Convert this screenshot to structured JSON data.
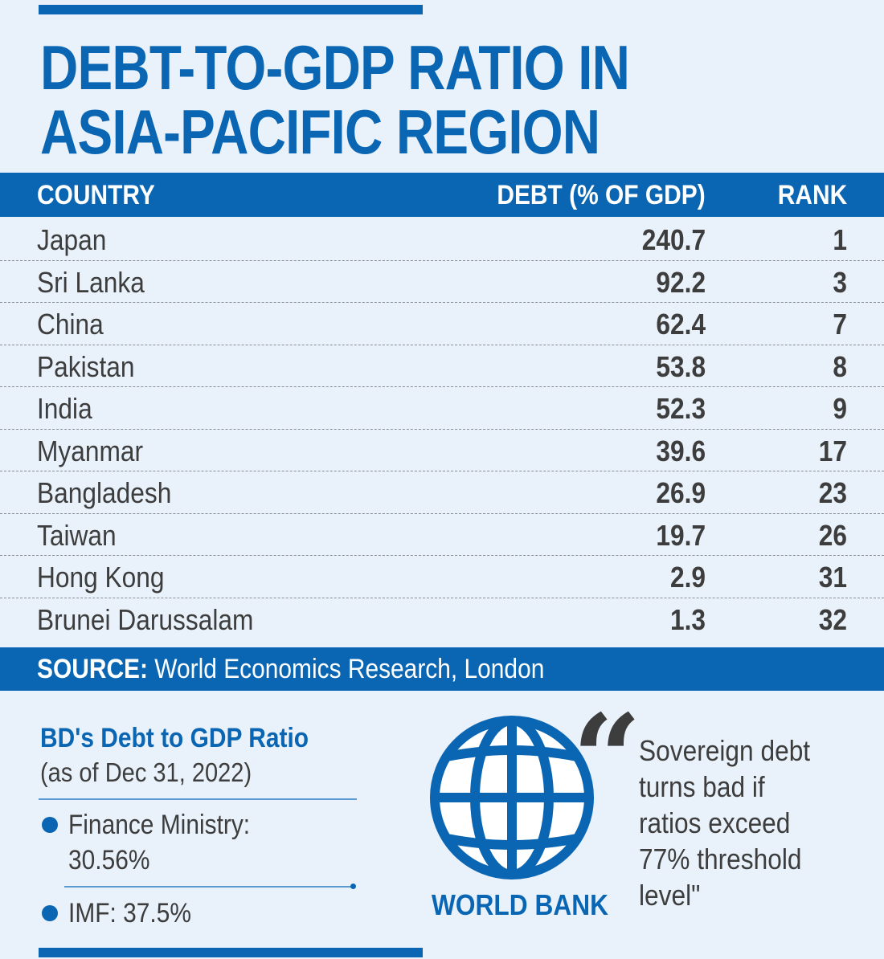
{
  "title_line1": "DEBT-TO-GDP RATIO IN",
  "title_line2": "ASIA-PACIFIC REGION",
  "colors": {
    "brand_blue": "#0a66b3",
    "panel_bg": "#e9f2fb",
    "text_dark": "#3d3d3d"
  },
  "table": {
    "headers": {
      "country": "COUNTRY",
      "debt": "DEBT (% OF GDP)",
      "rank": "RANK"
    },
    "rows": [
      {
        "country": "Japan",
        "debt": "240.7",
        "rank": "1"
      },
      {
        "country": "Sri Lanka",
        "debt": "92.2",
        "rank": "3"
      },
      {
        "country": "China",
        "debt": "62.4",
        "rank": "7"
      },
      {
        "country": "Pakistan",
        "debt": "53.8",
        "rank": "8"
      },
      {
        "country": "India",
        "debt": "52.3",
        "rank": "9"
      },
      {
        "country": "Myanmar",
        "debt": "39.6",
        "rank": "17"
      },
      {
        "country": "Bangladesh",
        "debt": "26.9",
        "rank": "23"
      },
      {
        "country": "Taiwan",
        "debt": "19.7",
        "rank": "26"
      },
      {
        "country": "Hong Kong",
        "debt": "2.9",
        "rank": "31"
      },
      {
        "country": "Brunei Darussalam",
        "debt": "1.3",
        "rank": "32"
      }
    ]
  },
  "source": {
    "label": "SOURCE:",
    "text": " World Economics Research, London"
  },
  "bd": {
    "title": "BD's Debt to GDP Ratio",
    "subtitle": "(as of Dec 31, 2022)",
    "items": [
      {
        "line1": "Finance Ministry:",
        "line2": "30.56%"
      },
      {
        "line1": "IMF: 37.5%"
      }
    ]
  },
  "world_bank": {
    "label": "WORLD BANK",
    "icon": "globe-icon",
    "quote_mark": "“",
    "quote_lines": [
      "Sovereign debt",
      "turns bad if",
      "ratios exceed",
      "77% threshold",
      "level\""
    ]
  },
  "chart_data": {
    "type": "table",
    "title": "DEBT-TO-GDP RATIO IN ASIA-PACIFIC REGION",
    "columns": [
      "COUNTRY",
      "DEBT (% OF GDP)",
      "RANK"
    ],
    "categories": [
      "Japan",
      "Sri Lanka",
      "China",
      "Pakistan",
      "India",
      "Myanmar",
      "Bangladesh",
      "Taiwan",
      "Hong Kong",
      "Brunei Darussalam"
    ],
    "series": [
      {
        "name": "DEBT (% OF GDP)",
        "values": [
          240.7,
          92.2,
          62.4,
          53.8,
          52.3,
          39.6,
          26.9,
          19.7,
          2.9,
          1.3
        ]
      },
      {
        "name": "RANK",
        "values": [
          1,
          3,
          7,
          8,
          9,
          17,
          23,
          26,
          31,
          32
        ]
      }
    ]
  }
}
